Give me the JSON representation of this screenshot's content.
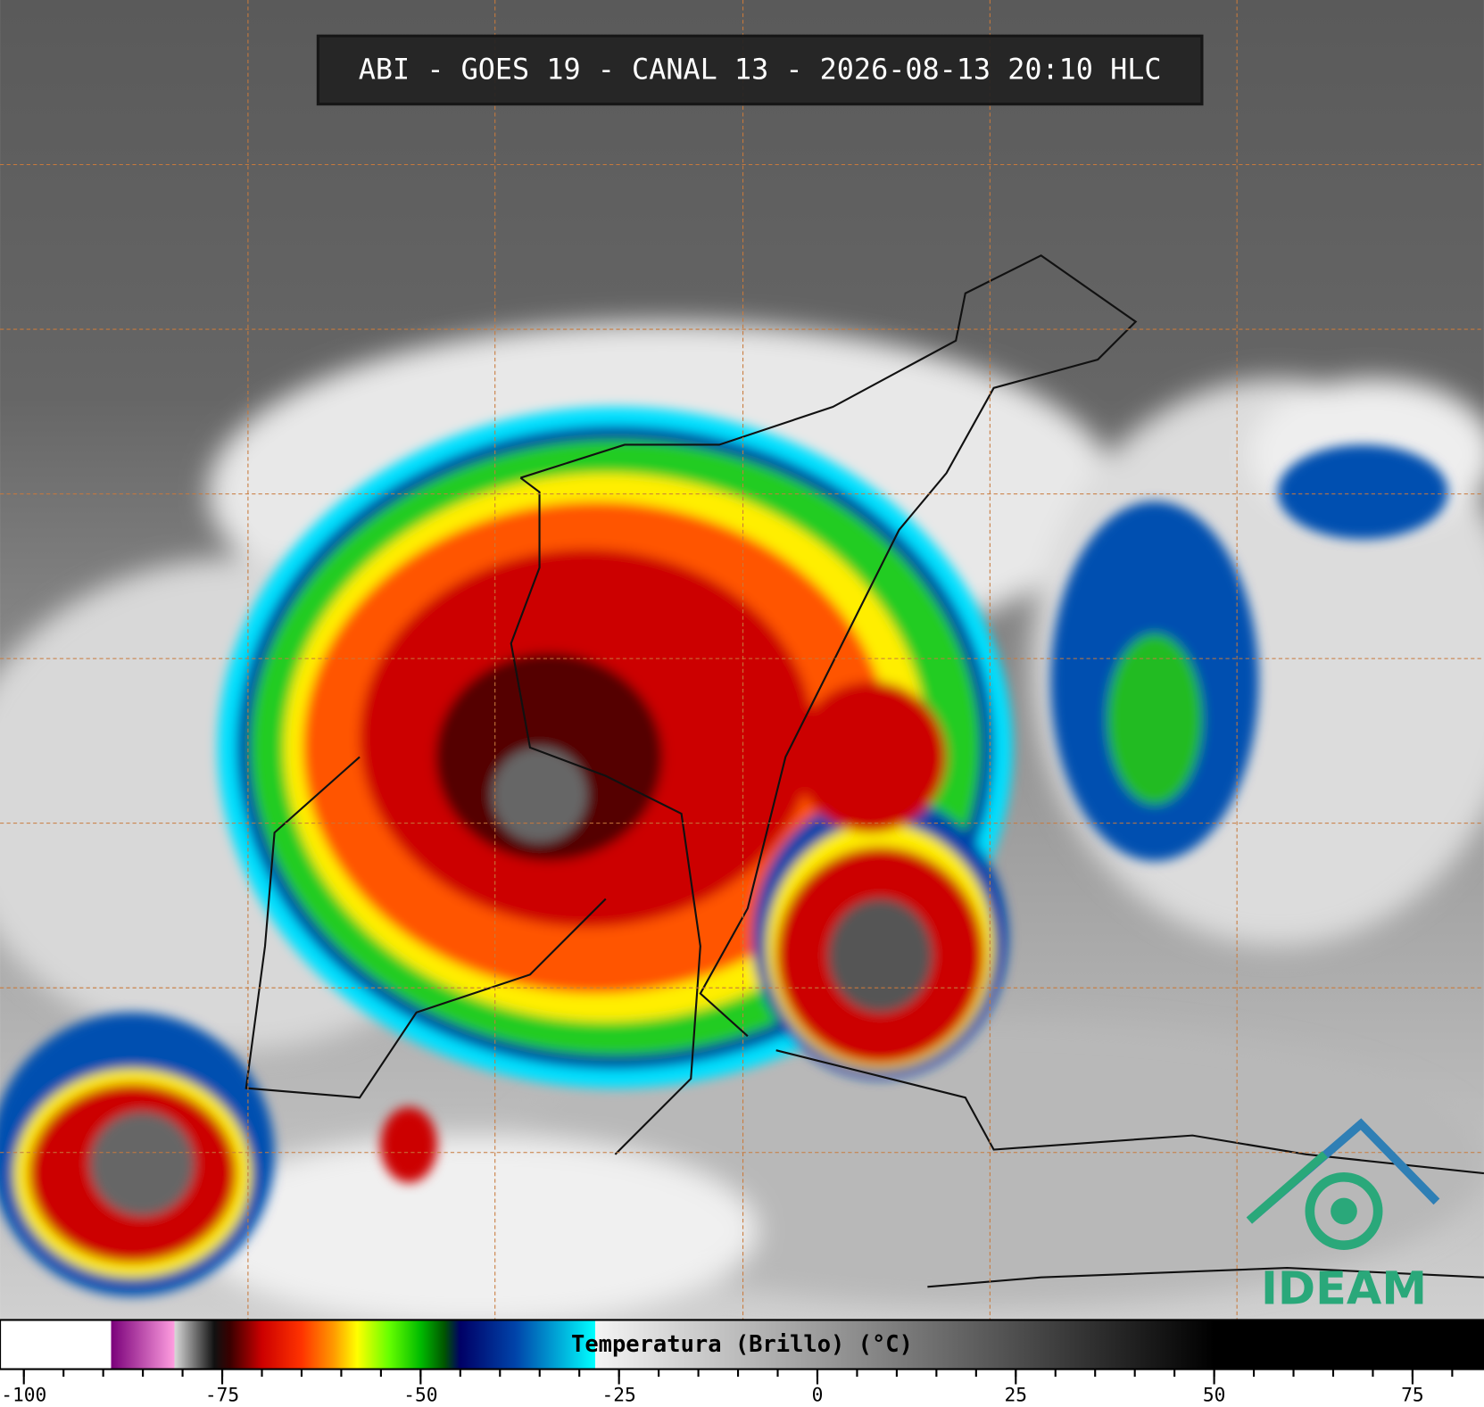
{
  "title": "ABI - GOES 19 - CANAL 13 - 2026-08-13 20:10 HLC",
  "logo": "IDEAM",
  "colorbar": {
    "label": "Temperatura (Brillo) (°C)",
    "lim": [
      -103,
      84
    ],
    "ticks": [
      -100,
      -75,
      -50,
      -25,
      0,
      25,
      50,
      75
    ],
    "minor_ticks": [
      -100,
      -95,
      -90,
      -85,
      -80,
      -75,
      -70,
      -65,
      -60,
      -55,
      -50,
      -45,
      -40,
      -35,
      -30,
      -25,
      -20,
      -15,
      -10,
      -5,
      0,
      5,
      10,
      15,
      20,
      25,
      30,
      35,
      40,
      45,
      50,
      55,
      60,
      65,
      70,
      75,
      80
    ],
    "stops": [
      {
        "value": -103,
        "color": "#ffffff"
      },
      {
        "value": -89,
        "color": "#ffffff"
      },
      {
        "value": -89,
        "color": "#7a007a"
      },
      {
        "value": -81,
        "color": "#ff9ee0"
      },
      {
        "value": -81,
        "color": "#d8d8d8"
      },
      {
        "value": -76,
        "color": "#111111"
      },
      {
        "value": -74,
        "color": "#3a0000"
      },
      {
        "value": -70,
        "color": "#cc0000"
      },
      {
        "value": -65,
        "color": "#ff3300"
      },
      {
        "value": -61,
        "color": "#ff9900"
      },
      {
        "value": -58,
        "color": "#ffff00"
      },
      {
        "value": -54,
        "color": "#66ff00"
      },
      {
        "value": -50,
        "color": "#00bb00"
      },
      {
        "value": -47,
        "color": "#005500"
      },
      {
        "value": -45,
        "color": "#000066"
      },
      {
        "value": -38,
        "color": "#0044aa"
      },
      {
        "value": -28,
        "color": "#00ffff"
      },
      {
        "value": -28,
        "color": "#f4f4f4"
      },
      {
        "value": 50,
        "color": "#000000"
      },
      {
        "value": 84,
        "color": "#000000"
      }
    ]
  }
}
